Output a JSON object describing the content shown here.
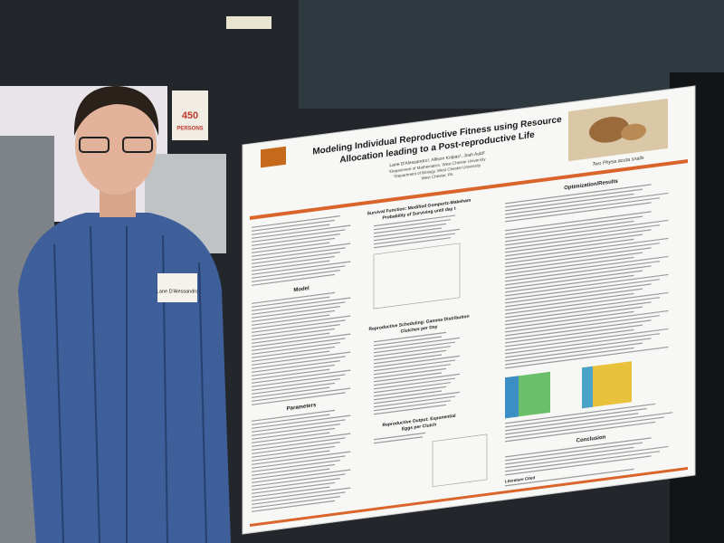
{
  "poster": {
    "title_lines": [
      "Modeling Individual Reproductive Fitness using Resource",
      "Allocation leading to a Post-reproductive Life"
    ],
    "authors": "Lane D'Alessandro¹, Allison Kolpas¹, Josh Auld²",
    "affiliations": [
      "¹Department of Mathematics, West Chester University",
      "²Department of Biology, West Chester University",
      "West Chester, PA"
    ],
    "photo_caption": "Two Physa acuta snails",
    "sections": {
      "model": "Model",
      "parameters": "Parameters",
      "survival": [
        "Survival Function: Modified Gompertz-Makeham",
        "Probability of Surviving until day t"
      ],
      "scheduling": [
        "Reproductive Scheduling: Gamma Distribution",
        "Clutches per Day"
      ],
      "output": [
        "Reproductive Output: Exponential",
        "Eggs per Clutch"
      ],
      "results": "Optimization/Results",
      "conclusion": "Conclusion",
      "literature": "Literature Cited"
    }
  },
  "name_tag": "Lane D'Alessandro",
  "sign": {
    "number": "450",
    "word": "PERSONS"
  }
}
